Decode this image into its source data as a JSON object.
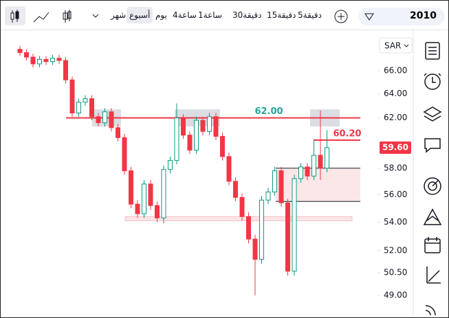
{
  "toolbar": {
    "timeframes": [
      "شهر",
      "أسبوع",
      "يوم",
      "4ساعة",
      "1ساعة",
      "30دقيقة",
      "15دقيقة",
      "5دقيقة"
    ],
    "symbol": "2010"
  },
  "chart_data": {
    "type": "candlestick",
    "currency": "SAR",
    "log_scale": true,
    "colors": {
      "up": "#089981",
      "down": "#f23645"
    },
    "ylim": [
      47.6,
      69.7
    ],
    "yticks": [
      {
        "value": 66,
        "label": "66.00"
      },
      {
        "value": 64,
        "label": "64.00"
      },
      {
        "value": 62,
        "label": "62.00"
      },
      {
        "value": 58,
        "label": "58.00"
      },
      {
        "value": 56,
        "label": "56.00"
      },
      {
        "value": 54,
        "label": "54.00"
      },
      {
        "value": 52,
        "label": "52.00"
      },
      {
        "value": 50.5,
        "label": "50.50"
      },
      {
        "value": 49,
        "label": "49.00"
      }
    ],
    "open": [
      67.9,
      67.6,
      67.2,
      66.6,
      67.0,
      66.8,
      67.1,
      66.9,
      65.2,
      62.4,
      63.3,
      63.6,
      62.1,
      61.6,
      62.5,
      61.2,
      60.4,
      57.8,
      55.3,
      54.6,
      56.8,
      55.2,
      54.3,
      57.9,
      58.6,
      62.0,
      60.6,
      59.4,
      61.8,
      60.9,
      62.1,
      60.5,
      58.9,
      57.0,
      55.8,
      54.4,
      52.8,
      51.4,
      55.6,
      56.2,
      57.8,
      55.4,
      50.6,
      57.2,
      58.1,
      57.4,
      59.0,
      58.0
    ],
    "high": [
      68.2,
      67.9,
      67.5,
      67.3,
      67.3,
      67.4,
      67.4,
      67.2,
      65.5,
      63.6,
      63.9,
      63.9,
      62.4,
      62.8,
      62.8,
      61.5,
      60.7,
      58.1,
      55.6,
      57.1,
      57.1,
      55.5,
      58.2,
      58.9,
      63.2,
      62.3,
      60.9,
      62.1,
      62.1,
      62.4,
      62.4,
      60.8,
      59.2,
      57.3,
      56.1,
      54.7,
      53.1,
      55.9,
      56.5,
      58.1,
      58.1,
      55.7,
      57.5,
      58.4,
      58.4,
      60.2,
      62.6,
      61.0
    ],
    "low": [
      67.3,
      66.9,
      66.3,
      66.3,
      66.5,
      66.5,
      66.6,
      64.9,
      62.1,
      62.1,
      63.0,
      61.8,
      61.3,
      61.3,
      60.9,
      60.1,
      57.5,
      55.0,
      54.3,
      54.3,
      54.9,
      54.0,
      53.9,
      57.6,
      58.3,
      60.3,
      59.1,
      59.1,
      60.6,
      60.6,
      60.2,
      58.6,
      56.7,
      55.5,
      54.1,
      52.5,
      49.0,
      51.1,
      55.3,
      55.9,
      55.1,
      50.3,
      50.3,
      56.9,
      57.1,
      57.1,
      57.1,
      57.7
    ],
    "close": [
      67.6,
      67.2,
      66.6,
      67.0,
      66.8,
      67.1,
      66.9,
      65.2,
      62.4,
      63.3,
      63.6,
      62.1,
      61.6,
      62.5,
      61.2,
      60.4,
      57.8,
      55.3,
      54.6,
      56.8,
      55.2,
      54.3,
      57.9,
      58.6,
      62.0,
      60.6,
      59.4,
      61.8,
      60.9,
      62.1,
      60.5,
      58.9,
      57.0,
      55.8,
      54.4,
      52.8,
      51.4,
      55.6,
      56.2,
      57.8,
      55.4,
      50.6,
      57.2,
      58.1,
      57.4,
      59.0,
      58.0,
      59.6
    ],
    "levels": [
      {
        "value": 62,
        "label": "62.00",
        "color": "#26a69a"
      },
      {
        "value": 60.2,
        "label": "60.20",
        "color": "#f23645"
      }
    ],
    "zones": [
      {
        "from": 55.5,
        "to": 58
      },
      {
        "from": 54.1,
        "to": 54.4
      }
    ],
    "highlights": [
      {
        "from": 61.3,
        "to": 62.7
      },
      {
        "from": 61.3,
        "to": 62.7
      },
      {
        "from": 61.3,
        "to": 62.7
      }
    ],
    "price_label": {
      "value": 59.6,
      "label": "59.60"
    }
  }
}
